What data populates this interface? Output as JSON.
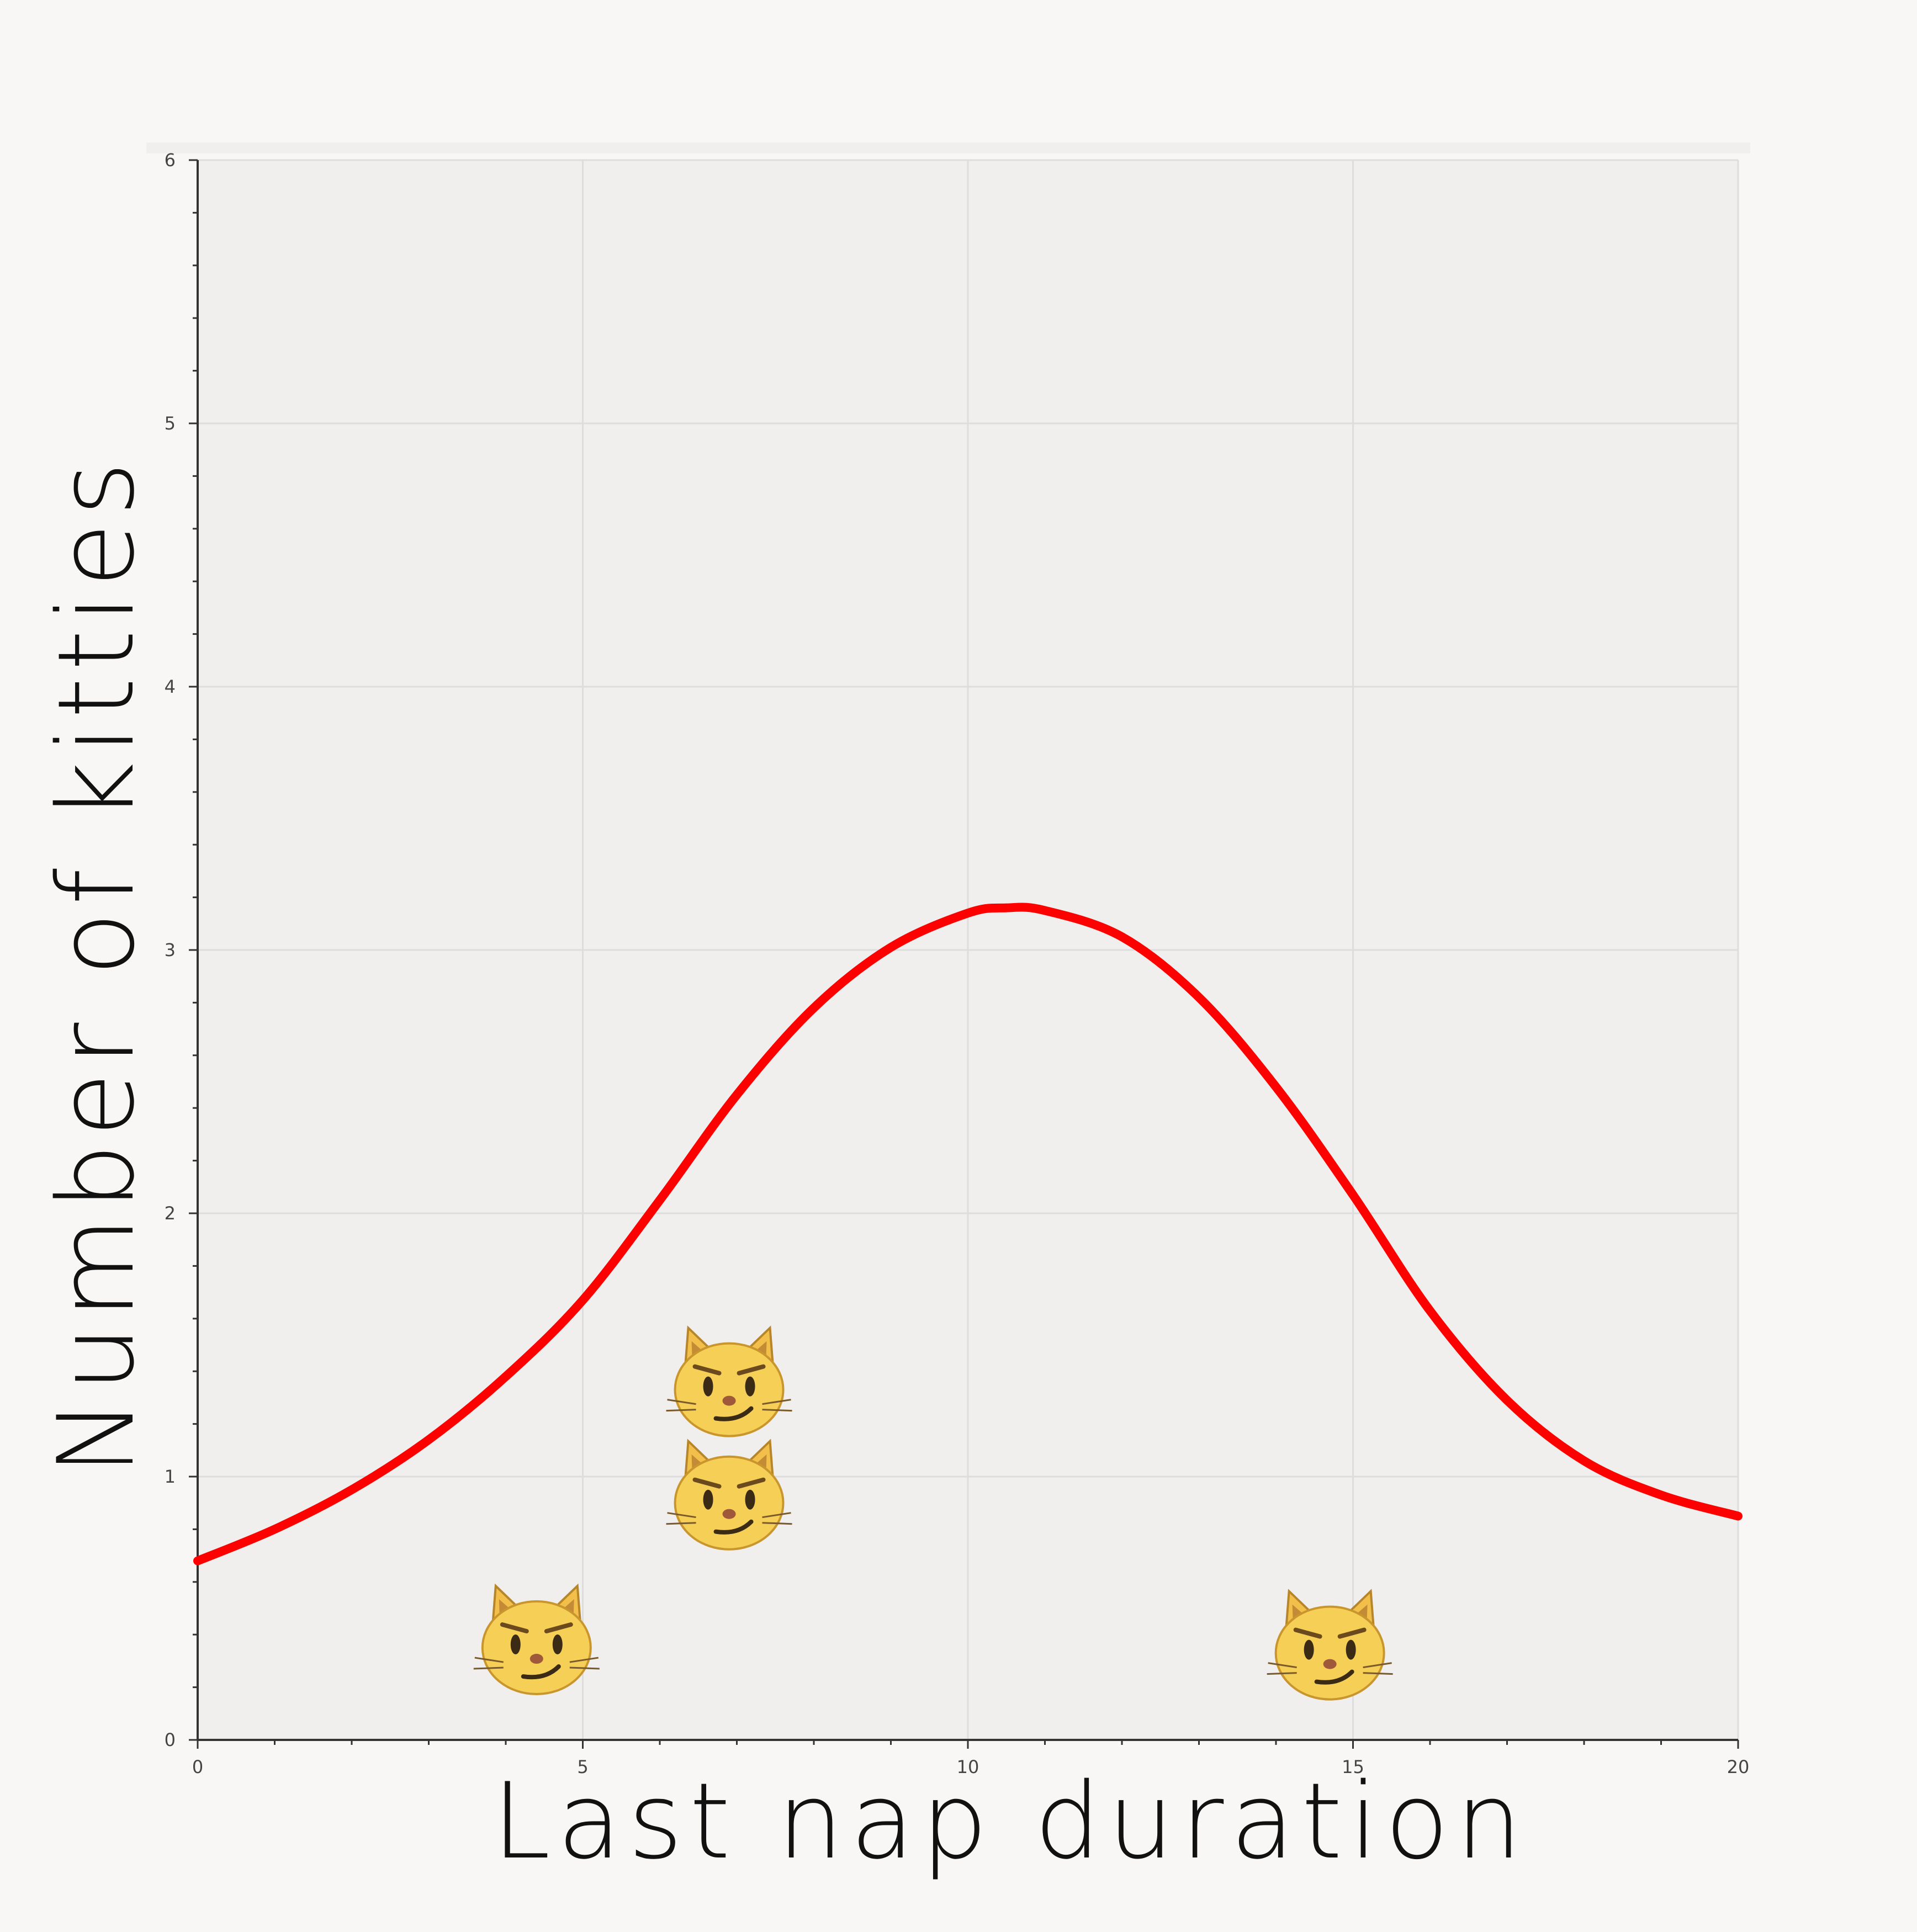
{
  "chart_data": {
    "type": "scatter",
    "xlabel": "Last nap duration",
    "ylabel": "Number of kitties",
    "xlim": [
      0,
      20
    ],
    "ylim": [
      0,
      6
    ],
    "x_ticks": [
      "0",
      "5",
      "10",
      "15",
      "20"
    ],
    "y_ticks": [
      "0",
      "1",
      "2",
      "3",
      "4",
      "5",
      "6"
    ],
    "grid": true,
    "series": [
      {
        "type": "scatter",
        "marker": "smirking-cat-face-emoji",
        "marker_glyph": "😼",
        "points": [
          {
            "x": 4.4,
            "y": 0.35
          },
          {
            "x": 6.9,
            "y": 0.9
          },
          {
            "x": 6.9,
            "y": 1.33
          },
          {
            "x": 14.7,
            "y": 0.33
          }
        ]
      },
      {
        "type": "line",
        "color": "#ff0000",
        "points": [
          {
            "x": 0,
            "y": 0.68
          },
          {
            "x": 1,
            "y": 0.8
          },
          {
            "x": 2,
            "y": 0.95
          },
          {
            "x": 3,
            "y": 1.14
          },
          {
            "x": 4,
            "y": 1.38
          },
          {
            "x": 5,
            "y": 1.67
          },
          {
            "x": 6,
            "y": 2.05
          },
          {
            "x": 7,
            "y": 2.45
          },
          {
            "x": 8,
            "y": 2.78
          },
          {
            "x": 9,
            "y": 3.01
          },
          {
            "x": 10,
            "y": 3.14
          },
          {
            "x": 10.5,
            "y": 3.16
          },
          {
            "x": 11,
            "y": 3.15
          },
          {
            "x": 12,
            "y": 3.05
          },
          {
            "x": 13,
            "y": 2.82
          },
          {
            "x": 14,
            "y": 2.48
          },
          {
            "x": 15,
            "y": 2.07
          },
          {
            "x": 16,
            "y": 1.63
          },
          {
            "x": 17,
            "y": 1.29
          },
          {
            "x": 18,
            "y": 1.06
          },
          {
            "x": 19,
            "y": 0.93
          },
          {
            "x": 20,
            "y": 0.85
          }
        ]
      }
    ]
  },
  "colors": {
    "page_background": "#f8f7f6",
    "plot_background": "#f1efee",
    "grid": "#dddddd",
    "axis": "#333333",
    "curve": "#ff0000"
  }
}
